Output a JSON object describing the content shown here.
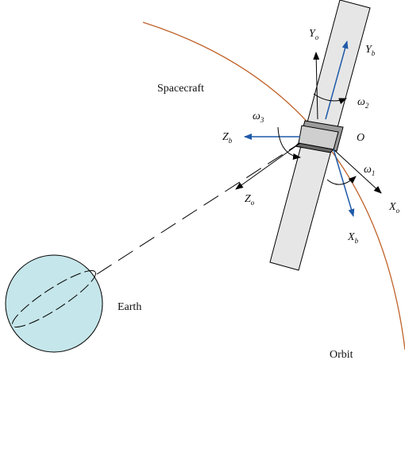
{
  "labels": {
    "spacecraft": "Spacecraft",
    "earth": "Earth",
    "orbit": "Orbit",
    "origin": "O"
  },
  "axes": [
    {
      "symbol": "Y",
      "sub": "o"
    },
    {
      "symbol": "Y",
      "sub": "b"
    },
    {
      "symbol": "ω",
      "sub": "2"
    },
    {
      "symbol": "ω",
      "sub": "3"
    },
    {
      "symbol": "Z",
      "sub": "b"
    },
    {
      "symbol": "ω",
      "sub": "1"
    },
    {
      "symbol": "Z",
      "sub": "o"
    },
    {
      "symbol": "X",
      "sub": "o"
    },
    {
      "symbol": "X",
      "sub": "b"
    }
  ]
}
